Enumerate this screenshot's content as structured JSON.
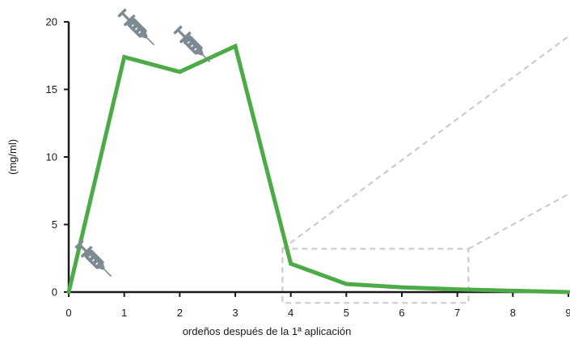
{
  "chart_data": {
    "type": "line",
    "xlabel": "ordeños después de la 1ª aplicación",
    "ylabel": "(mg/ml)",
    "xlim": [
      0,
      9
    ],
    "ylim": [
      0,
      20
    ],
    "x_ticks": [
      "0",
      "1",
      "2",
      "3",
      "4",
      "5",
      "6",
      "7",
      "8",
      "9"
    ],
    "y_ticks": [
      "0",
      "5",
      "10",
      "15",
      "20"
    ],
    "grid": false,
    "legend": "none",
    "series": [
      {
        "color": "#4caa47",
        "x": [
          0,
          1,
          2,
          3,
          4,
          5,
          6,
          7,
          8,
          9
        ],
        "y": [
          0,
          17.4,
          16.3,
          18.2,
          2.1,
          0.6,
          0.35,
          0.2,
          0.1,
          0.0
        ]
      }
    ],
    "annotations": [
      {
        "icon": "syringe-icon",
        "x": 0.3,
        "color": "#7d8a93"
      },
      {
        "icon": "syringe-icon",
        "x": 1.2,
        "color": "#7d8a93"
      },
      {
        "icon": "syringe-icon",
        "x": 2.3,
        "color": "#7d8a93"
      }
    ],
    "zoom_box": {
      "x_range": [
        3.85,
        7.2
      ],
      "y_range": [
        -0.8,
        3.2
      ],
      "color": "#c8c8c8"
    }
  }
}
